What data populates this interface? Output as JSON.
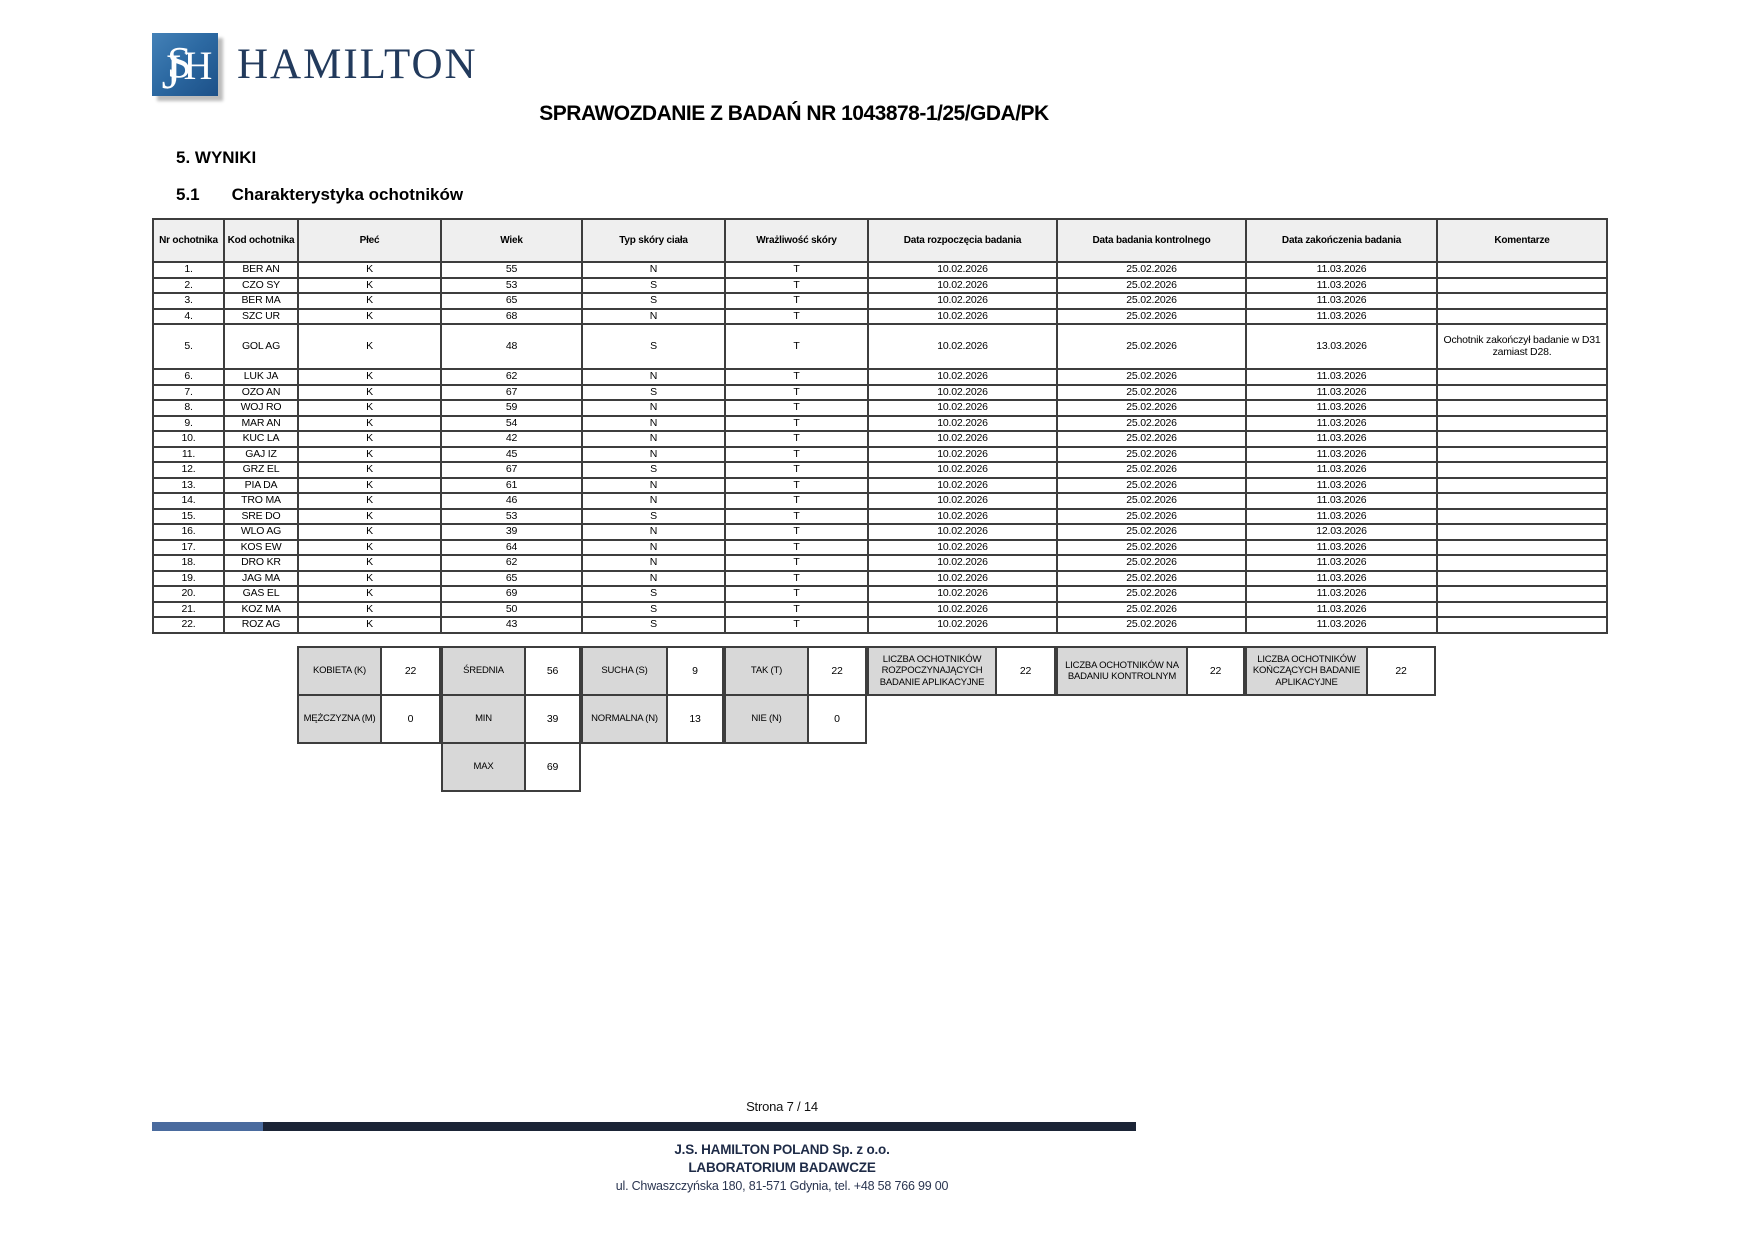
{
  "logo": {
    "monogram_j": "J",
    "monogram_s": "S",
    "monogram_h": "H",
    "brand": "HAMILTON"
  },
  "header": {
    "title": "SPRAWOZDANIE Z BADAŃ NR 1043878-1/25/GDA/PK"
  },
  "sections": {
    "h1": "5. WYNIKI",
    "h2_number": "5.1",
    "h2_title": "Charakterystyka ochotników"
  },
  "table": {
    "columns": [
      "Nr ochotnika",
      "Kod ochotnika",
      "Płeć",
      "Wiek",
      "Typ skóry ciała",
      "Wrażliwość skóry",
      "Data rozpoczęcia badania",
      "Data badania kontrolnego",
      "Data zakończenia badania",
      "Komentarze"
    ],
    "rows": [
      [
        "1.",
        "BER AN",
        "K",
        "55",
        "N",
        "T",
        "10.02.2026",
        "25.02.2026",
        "11.03.2026",
        ""
      ],
      [
        "2.",
        "CZO SY",
        "K",
        "53",
        "S",
        "T",
        "10.02.2026",
        "25.02.2026",
        "11.03.2026",
        ""
      ],
      [
        "3.",
        "BER MA",
        "K",
        "65",
        "S",
        "T",
        "10.02.2026",
        "25.02.2026",
        "11.03.2026",
        ""
      ],
      [
        "4.",
        "SZC UR",
        "K",
        "68",
        "N",
        "T",
        "10.02.2026",
        "25.02.2026",
        "11.03.2026",
        ""
      ],
      [
        "5.",
        "GOL AG",
        "K",
        "48",
        "S",
        "T",
        "10.02.2026",
        "25.02.2026",
        "13.03.2026",
        "Ochotnik zakończył badanie w D31 zamiast D28."
      ],
      [
        "6.",
        "LUK JA",
        "K",
        "62",
        "N",
        "T",
        "10.02.2026",
        "25.02.2026",
        "11.03.2026",
        ""
      ],
      [
        "7.",
        "OZO AN",
        "K",
        "67",
        "S",
        "T",
        "10.02.2026",
        "25.02.2026",
        "11.03.2026",
        ""
      ],
      [
        "8.",
        "WOJ RO",
        "K",
        "59",
        "N",
        "T",
        "10.02.2026",
        "25.02.2026",
        "11.03.2026",
        ""
      ],
      [
        "9.",
        "MAR AN",
        "K",
        "54",
        "N",
        "T",
        "10.02.2026",
        "25.02.2026",
        "11.03.2026",
        ""
      ],
      [
        "10.",
        "KUC LA",
        "K",
        "42",
        "N",
        "T",
        "10.02.2026",
        "25.02.2026",
        "11.03.2026",
        ""
      ],
      [
        "11.",
        "GAJ IZ",
        "K",
        "45",
        "N",
        "T",
        "10.02.2026",
        "25.02.2026",
        "11.03.2026",
        ""
      ],
      [
        "12.",
        "GRZ EL",
        "K",
        "67",
        "S",
        "T",
        "10.02.2026",
        "25.02.2026",
        "11.03.2026",
        ""
      ],
      [
        "13.",
        "PIA DA",
        "K",
        "61",
        "N",
        "T",
        "10.02.2026",
        "25.02.2026",
        "11.03.2026",
        ""
      ],
      [
        "14.",
        "TRO MA",
        "K",
        "46",
        "N",
        "T",
        "10.02.2026",
        "25.02.2026",
        "11.03.2026",
        ""
      ],
      [
        "15.",
        "SRE DO",
        "K",
        "53",
        "S",
        "T",
        "10.02.2026",
        "25.02.2026",
        "11.03.2026",
        ""
      ],
      [
        "16.",
        "WLO AG",
        "K",
        "39",
        "N",
        "T",
        "10.02.2026",
        "25.02.2026",
        "12.03.2026",
        ""
      ],
      [
        "17.",
        "KOS EW",
        "K",
        "64",
        "N",
        "T",
        "10.02.2026",
        "25.02.2026",
        "11.03.2026",
        ""
      ],
      [
        "18.",
        "DRO KR",
        "K",
        "62",
        "N",
        "T",
        "10.02.2026",
        "25.02.2026",
        "11.03.2026",
        ""
      ],
      [
        "19.",
        "JAG MA",
        "K",
        "65",
        "N",
        "T",
        "10.02.2026",
        "25.02.2026",
        "11.03.2026",
        ""
      ],
      [
        "20.",
        "GAS EL",
        "K",
        "69",
        "S",
        "T",
        "10.02.2026",
        "25.02.2026",
        "11.03.2026",
        ""
      ],
      [
        "21.",
        "KOZ MA",
        "K",
        "50",
        "S",
        "T",
        "10.02.2026",
        "25.02.2026",
        "11.03.2026",
        ""
      ],
      [
        "22.",
        "ROZ AG",
        "K",
        "43",
        "S",
        "T",
        "10.02.2026",
        "25.02.2026",
        "11.03.2026",
        ""
      ]
    ]
  },
  "summary": {
    "top": [
      {
        "label": "KOBIETA (K)",
        "value": "22"
      },
      {
        "label": "ŚREDNIA",
        "value": "56"
      },
      {
        "label": "SUCHA (S)",
        "value": "9"
      },
      {
        "label": "TAK (T)",
        "value": "22"
      },
      {
        "label": "LICZBA OCHOTNIKÓW ROZPOCZYNAJĄCYCH BADANIE APLIKACYJNE",
        "value": "22"
      },
      {
        "label": "LICZBA OCHOTNIKÓW NA BADANIU KONTROLNYM",
        "value": "22"
      },
      {
        "label": "LICZBA OCHOTNIKÓW KOŃCZĄCYCH BADANIE APLIKACYJNE",
        "value": "22"
      }
    ],
    "mid": [
      {
        "label": "MĘŻCZYZNA (M)",
        "value": "0"
      },
      {
        "label": "MIN",
        "value": "39"
      },
      {
        "label": "NORMALNA (N)",
        "value": "13"
      },
      {
        "label": "NIE (N)",
        "value": "0"
      }
    ],
    "bottom": [
      {
        "label": "MAX",
        "value": "69"
      }
    ]
  },
  "footer": {
    "page": "Strona 7 / 14",
    "company": "J.S. HAMILTON POLAND Sp. z o.o.",
    "lab": "LABORATORIUM BADAWCZE",
    "address": "ul. Chwaszczyńska 180, 81-571 Gdynia, tel. +48 58 766 99 00"
  },
  "colors": {
    "brand_navy": "#223a5c",
    "logo_blue_light": "#4481b7",
    "logo_blue_dark": "#1c5088",
    "bar_light_blue": "#4a6b9e",
    "bar_dark_navy": "#1b2436",
    "header_cell_bg": "#efefef",
    "summary_label_bg": "#d8d8d8"
  }
}
